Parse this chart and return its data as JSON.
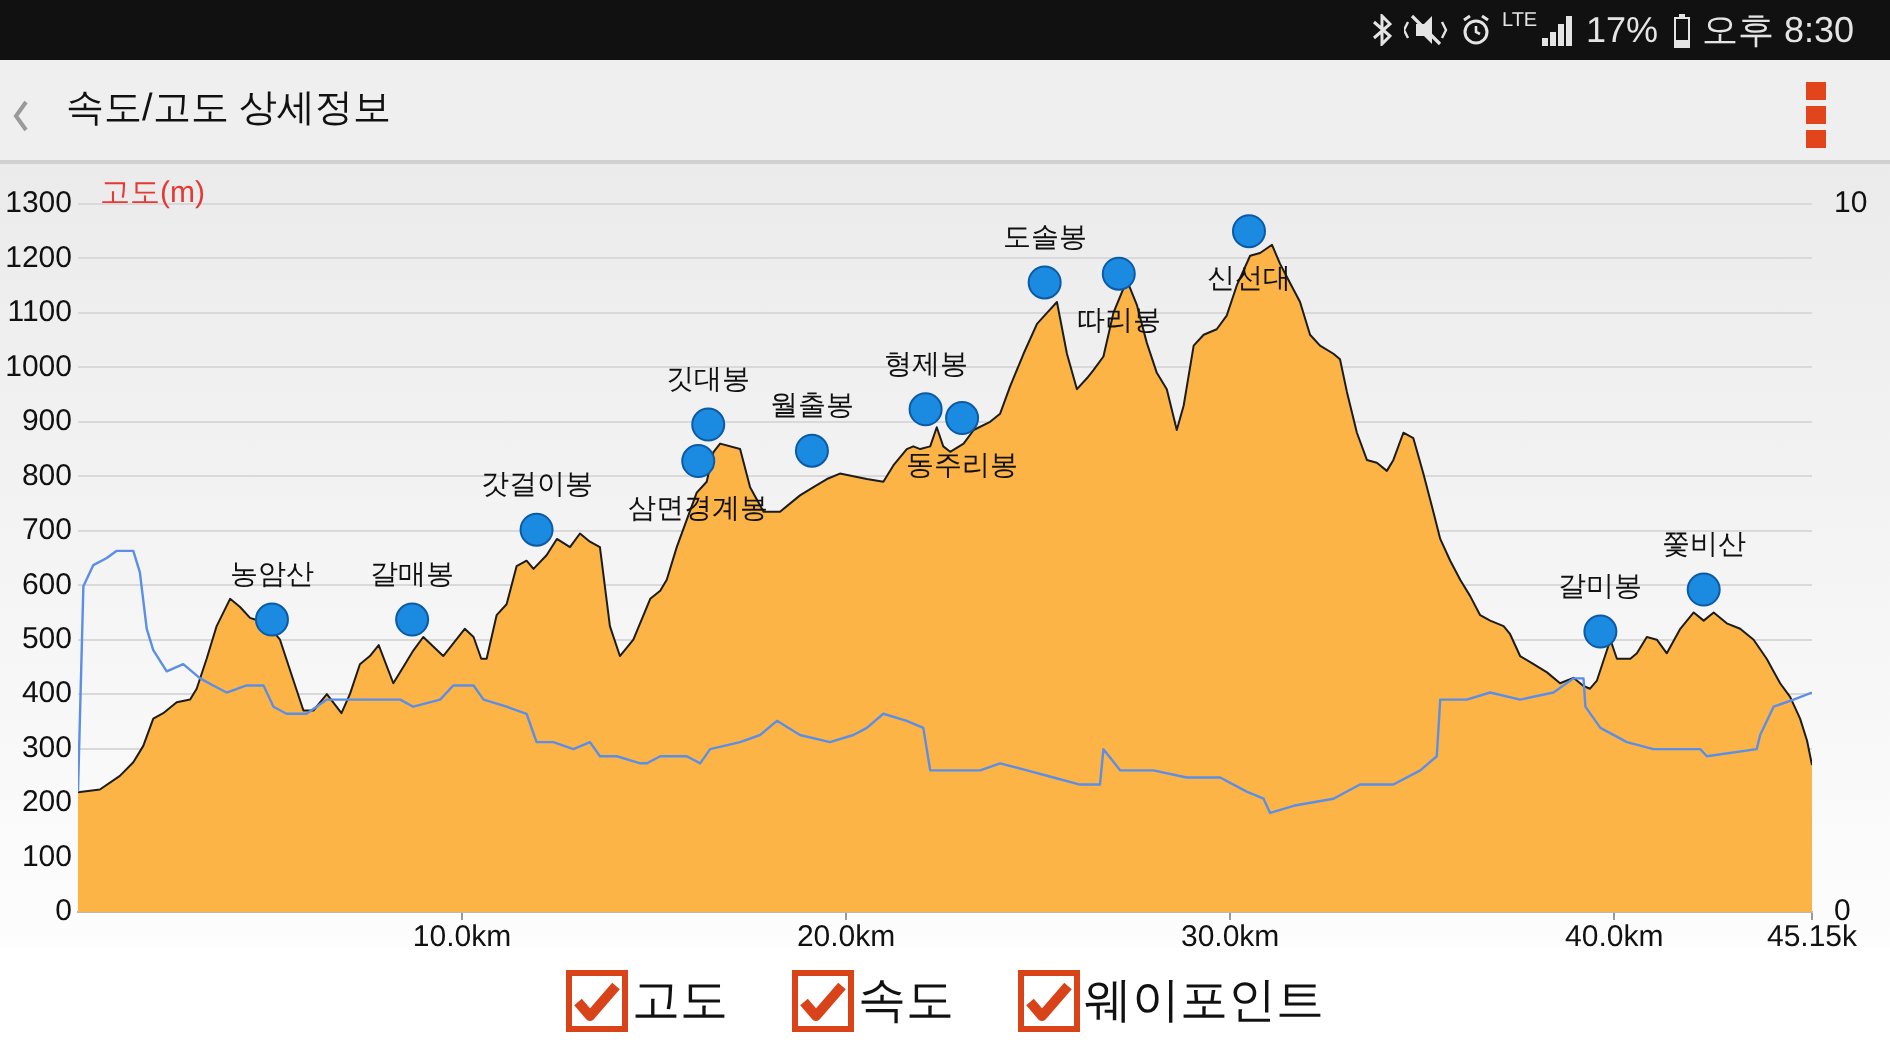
{
  "chart_data": {
    "type": "area",
    "title": "속도/고도 상세정보",
    "ylabel": "고도(m)",
    "annotations": [
      "LTE",
      "17%",
      "오후 8:30",
      "고도",
      "속도",
      "웨이포인트",
      {
        "text": "농암산",
        "x": 5.05,
        "y": 537
      },
      {
        "text": "갈매봉",
        "x": 8.7,
        "y": 537
      },
      {
        "text": "갓걸이봉",
        "x": 11.94,
        "y": 702
      },
      {
        "text": "삼면경계봉",
        "x": 16.15,
        "y": 828
      },
      {
        "text": "깃대봉",
        "x": 16.41,
        "y": 895
      },
      {
        "text": "월출봉",
        "x": 19.11,
        "y": 847
      },
      {
        "text": "형제봉",
        "x": 22.07,
        "y": 923
      },
      {
        "text": "동주리봉",
        "x": 23.02,
        "y": 907
      },
      {
        "text": "도솔봉",
        "x": 25.17,
        "y": 1156
      },
      {
        "text": "따리봉",
        "x": 27.1,
        "y": 1172
      },
      {
        "text": "신선대",
        "x": 30.49,
        "y": 1250
      },
      {
        "text": "갈미봉",
        "x": 39.64,
        "y": 515
      },
      {
        "text": "쫓비산",
        "x": 42.33,
        "y": 592
      }
    ],
    "series": [
      {
        "color": "#fdb446",
        "x": [
          0,
          0.57,
          1.09,
          1.44,
          1.7,
          1.96,
          2.22,
          2.57,
          2.92,
          3.09,
          3.35,
          3.61,
          3.96,
          4.22,
          4.48,
          4.91,
          5.26,
          5.61,
          5.87,
          6.13,
          6.48,
          6.86,
          7.08,
          7.34,
          7.6,
          7.83,
          8.21,
          8.47,
          8.73,
          8.99,
          9.51,
          10.07,
          10.3,
          10.5,
          10.64,
          10.9,
          11.16,
          11.42,
          11.68,
          11.86,
          12.2,
          12.47,
          12.81,
          13.07,
          13.33,
          13.59,
          13.85,
          14.11,
          14.46,
          14.9,
          15.16,
          15.33,
          15.59,
          15.85,
          16.11,
          16.37,
          16.55,
          16.72,
          17.24,
          17.5,
          17.85,
          18.28,
          18.8,
          19.15,
          19.5,
          19.84,
          20.54,
          20.97,
          21.23,
          21.58,
          21.75,
          21.93,
          22.19,
          22.36,
          22.53,
          22.71,
          23.06,
          23.32,
          23.75,
          24.01,
          24.27,
          24.62,
          24.97,
          25.23,
          25.49,
          25.75,
          26.01,
          26.27,
          26.44,
          26.7,
          26.96,
          27.31,
          27.57,
          27.83,
          28.09,
          28.35,
          28.61,
          28.79,
          29.05,
          29.31,
          29.65,
          29.91,
          30.17,
          30.52,
          30.78,
          31.09,
          31.3,
          31.56,
          31.82,
          32.08,
          32.34,
          32.69,
          32.86,
          33.04,
          33.3,
          33.56,
          33.82,
          34.08,
          34.25,
          34.51,
          34.77,
          35.03,
          35.29,
          35.47,
          35.73,
          35.99,
          36.25,
          36.51,
          36.77,
          37.12,
          37.29,
          37.55,
          37.9,
          38.25,
          38.59,
          38.94,
          39.2,
          39.37,
          39.55,
          39.9,
          40.07,
          40.42,
          40.59,
          40.85,
          41.11,
          41.37,
          41.72,
          42.07,
          42.33,
          42.59,
          42.93,
          43.28,
          43.63,
          43.97,
          44.32,
          44.58,
          44.84,
          45.02,
          45.15
        ],
        "values": [
          220,
          225,
          250,
          275,
          305,
          355,
          365,
          385,
          390,
          410,
          465,
          525,
          575,
          560,
          540,
          530,
          500,
          425,
          370,
          370,
          400,
          365,
          400,
          455,
          470,
          490,
          420,
          450,
          480,
          505,
          470,
          520,
          505,
          465,
          465,
          545,
          565,
          635,
          645,
          630,
          655,
          685,
          670,
          695,
          680,
          670,
          525,
          470,
          500,
          575,
          590,
          610,
          670,
          720,
          770,
          790,
          845,
          860,
          850,
          780,
          735,
          735,
          765,
          780,
          795,
          805,
          795,
          790,
          820,
          850,
          855,
          850,
          855,
          890,
          855,
          845,
          860,
          885,
          900,
          915,
          965,
          1025,
          1080,
          1100,
          1120,
          1025,
          960,
          980,
          995,
          1020,
          1100,
          1160,
          1115,
          1045,
          990,
          960,
          885,
          930,
          1040,
          1060,
          1070,
          1095,
          1150,
          1205,
          1210,
          1225,
          1190,
          1155,
          1120,
          1060,
          1040,
          1025,
          1015,
          955,
          880,
          830,
          825,
          810,
          830,
          880,
          870,
          805,
          735,
          685,
          645,
          610,
          580,
          545,
          535,
          525,
          510,
          470,
          455,
          440,
          420,
          430,
          415,
          410,
          425,
          500,
          465,
          465,
          475,
          505,
          500,
          475,
          520,
          550,
          535,
          550,
          530,
          520,
          500,
          465,
          420,
          395,
          355,
          315,
          270
        ]
      },
      {
        "type": "line",
        "axis": "y2",
        "color": "#5b8ee6",
        "x": [
          0,
          0.14,
          0.4,
          0.75,
          1.0,
          1.44,
          1.61,
          1.79,
          1.96,
          2.31,
          2.74,
          3.18,
          3.52,
          3.87,
          4.39,
          4.83,
          5.09,
          5.43,
          5.95,
          6.48,
          7.0,
          7.69,
          8.39,
          8.73,
          9.43,
          9.77,
          10.3,
          10.56,
          11.16,
          11.68,
          11.94,
          12.38,
          12.9,
          13.33,
          13.59,
          14.03,
          14.64,
          14.81,
          15.16,
          15.85,
          16.2,
          16.46,
          17.24,
          17.76,
          18.2,
          18.8,
          19.58,
          20.19,
          20.54,
          20.97,
          21.58,
          22.01,
          22.19,
          22.8,
          23.49,
          24.01,
          24.71,
          25.4,
          26.09,
          26.61,
          26.7,
          27.14,
          28.0,
          28.87,
          29.74,
          30.43,
          30.87,
          31.04,
          31.65,
          32.69,
          33.38,
          34.25,
          34.95,
          35.38,
          35.47,
          36.16,
          36.77,
          37.55,
          38.42,
          38.94,
          39.2,
          39.25,
          39.64,
          40.33,
          41.02,
          42.24,
          42.41,
          43.71,
          43.8,
          44.15,
          44.67,
          45.15
        ],
        "values": [
          1.7,
          4.6,
          4.9,
          5.0,
          5.1,
          5.1,
          4.8,
          4.0,
          3.7,
          3.4,
          3.5,
          3.3,
          3.2,
          3.1,
          3.2,
          3.2,
          2.9,
          2.8,
          2.8,
          3.0,
          3.0,
          3.0,
          3.0,
          2.9,
          3.0,
          3.2,
          3.2,
          3.0,
          2.9,
          2.8,
          2.4,
          2.4,
          2.3,
          2.4,
          2.2,
          2.2,
          2.1,
          2.1,
          2.2,
          2.2,
          2.1,
          2.3,
          2.4,
          2.5,
          2.7,
          2.5,
          2.4,
          2.5,
          2.6,
          2.8,
          2.7,
          2.6,
          2.0,
          2.0,
          2.0,
          2.1,
          2.0,
          1.9,
          1.8,
          1.8,
          2.3,
          2.0,
          2.0,
          1.9,
          1.9,
          1.7,
          1.6,
          1.4,
          1.5,
          1.6,
          1.8,
          1.8,
          2.0,
          2.2,
          3.0,
          3.0,
          3.1,
          3.0,
          3.1,
          3.3,
          3.3,
          2.9,
          2.6,
          2.4,
          2.3,
          2.3,
          2.2,
          2.3,
          2.5,
          2.9,
          3.0,
          3.1
        ]
      },
      {
        "type": "scatter",
        "marker": "circle",
        "color": "#1a8be0",
        "x": [
          5.05,
          8.7,
          11.94,
          16.15,
          16.41,
          19.11,
          22.07,
          23.02,
          25.17,
          27.1,
          30.49,
          39.64,
          42.33
        ],
        "values": [
          537,
          537,
          702,
          828,
          895,
          847,
          923,
          907,
          1156,
          1172,
          1250,
          515,
          592
        ]
      }
    ],
    "xlim": [
      0,
      45.15
    ],
    "xticks": [
      {
        "value": 10,
        "label": "10.0km"
      },
      {
        "value": 20,
        "label": "20.0km"
      },
      {
        "value": 30,
        "label": "30.0km"
      },
      {
        "value": 40,
        "label": "40.0km"
      },
      {
        "value": 45.15,
        "label": "45.15k"
      }
    ],
    "ylim": [
      0,
      1300
    ],
    "yticks": [
      0,
      100,
      200,
      300,
      400,
      500,
      600,
      700,
      800,
      900,
      1000,
      1100,
      1200,
      1300
    ],
    "y2lim": [
      0,
      10
    ],
    "y2ticks": [
      0,
      10
    ],
    "grid": "y"
  }
}
